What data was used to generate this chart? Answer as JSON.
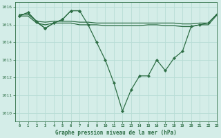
{
  "title": "Graphe pression niveau de la mer (hPa)",
  "background_color": "#d4ede8",
  "grid_color": "#b8ddd6",
  "line_color": "#2d6e45",
  "xlim": [
    -0.5,
    23
  ],
  "ylim": [
    1009.5,
    1016.3
  ],
  "yticks": [
    1010,
    1011,
    1012,
    1013,
    1014,
    1015,
    1016
  ],
  "xticks": [
    0,
    1,
    2,
    3,
    4,
    5,
    6,
    7,
    8,
    9,
    10,
    11,
    12,
    13,
    14,
    15,
    16,
    17,
    18,
    19,
    20,
    21,
    22,
    23
  ],
  "series": [
    {
      "name": "main_dip",
      "x": [
        0,
        1,
        2,
        3,
        4,
        5,
        6,
        7,
        8,
        9,
        10,
        11,
        12,
        13,
        14,
        15,
        16,
        17,
        18,
        19,
        20,
        21,
        22,
        23
      ],
      "y": [
        1015.5,
        1015.7,
        1015.2,
        1014.8,
        1015.1,
        1015.3,
        1015.8,
        1015.8,
        1015.0,
        1014.0,
        1013.0,
        1011.7,
        1010.1,
        1011.3,
        1012.1,
        1012.1,
        1013.0,
        1012.4,
        1013.1,
        1013.5,
        1014.9,
        1015.0,
        1015.1,
        1015.6
      ],
      "markers": true
    },
    {
      "name": "flat_top",
      "x": [
        0,
        1,
        2,
        3,
        4,
        5,
        6,
        7,
        8,
        9,
        10,
        11,
        12,
        13,
        14,
        15,
        16,
        17,
        18,
        19,
        20,
        21,
        22,
        23
      ],
      "y": [
        1015.6,
        1015.6,
        1015.2,
        1015.15,
        1015.2,
        1015.2,
        1015.2,
        1015.15,
        1015.15,
        1015.1,
        1015.1,
        1015.1,
        1015.1,
        1015.1,
        1015.1,
        1015.1,
        1015.1,
        1015.1,
        1015.1,
        1015.05,
        1015.05,
        1015.1,
        1015.1,
        1015.6
      ],
      "markers": false
    },
    {
      "name": "flat_mid",
      "x": [
        0,
        1,
        2,
        3,
        4,
        5,
        6,
        7,
        8,
        9,
        10,
        11,
        12,
        13,
        14,
        15,
        16,
        17,
        18,
        19,
        20,
        21,
        22,
        23
      ],
      "y": [
        1015.5,
        1015.5,
        1015.1,
        1015.0,
        1015.1,
        1015.1,
        1015.1,
        1015.0,
        1015.0,
        1015.0,
        1014.95,
        1014.95,
        1014.95,
        1014.95,
        1014.95,
        1015.0,
        1015.0,
        1014.95,
        1014.95,
        1014.9,
        1014.9,
        1015.0,
        1015.0,
        1015.55
      ],
      "markers": false
    },
    {
      "name": "bump_markers",
      "x": [
        0,
        1,
        2,
        3,
        4,
        5,
        6,
        7
      ],
      "y": [
        1015.5,
        1015.7,
        1015.15,
        1014.8,
        1015.1,
        1015.3,
        1015.8,
        1015.8
      ],
      "markers": true
    }
  ]
}
